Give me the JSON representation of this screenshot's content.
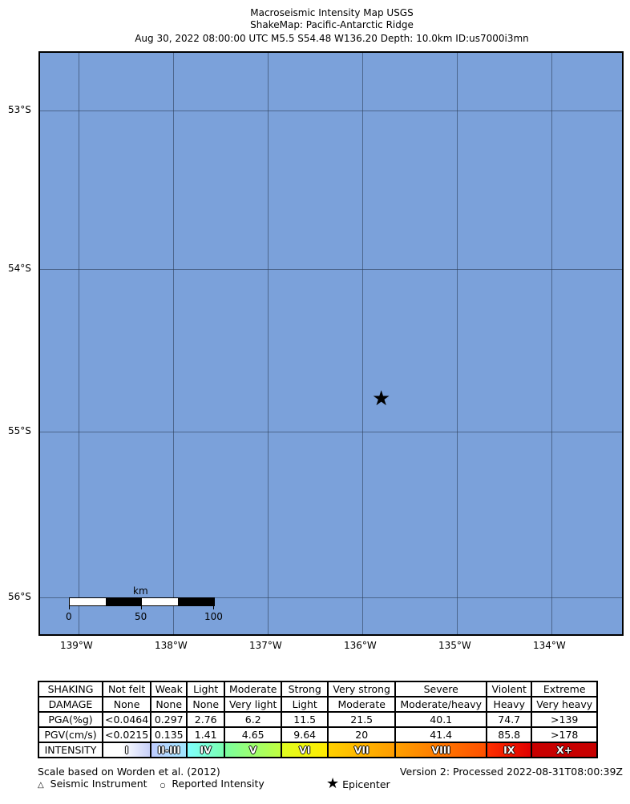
{
  "title": [
    "Macroseismic Intensity Map USGS",
    "ShakeMap: Pacific-Antarctic Ridge",
    "Aug 30, 2022 08:00:00 UTC M5.5 S54.48 W136.20 Depth: 10.0km ID:us7000i3mn"
  ],
  "map": {
    "lat_labels": [
      "53°S",
      "54°S",
      "55°S",
      "56°S"
    ],
    "lon_labels": [
      "139°W",
      "138°W",
      "137°W",
      "136°W",
      "135°W",
      "134°W"
    ],
    "water_color": "#7ba1da",
    "epicenter_icon": "star-icon",
    "scalebar": {
      "unit": "km",
      "ticks": [
        "0",
        "50",
        "100"
      ]
    }
  },
  "legend": {
    "rows": [
      {
        "label": "SHAKING",
        "cells": [
          "Not felt",
          "Weak",
          "Light",
          "Moderate",
          "Strong",
          "Very strong",
          "Severe",
          "Violent",
          "Extreme"
        ]
      },
      {
        "label": "DAMAGE",
        "cells": [
          "None",
          "None",
          "None",
          "Very light",
          "Light",
          "Moderate",
          "Moderate/heavy",
          "Heavy",
          "Very heavy"
        ]
      },
      {
        "label": "PGA(%g)",
        "cells": [
          "<0.0464",
          "0.297",
          "2.76",
          "6.2",
          "11.5",
          "21.5",
          "40.1",
          "74.7",
          ">139"
        ]
      },
      {
        "label": "PGV(cm/s)",
        "cells": [
          "<0.0215",
          "0.135",
          "1.41",
          "4.65",
          "9.64",
          "20",
          "41.4",
          "85.8",
          ">178"
        ]
      },
      {
        "label": "INTENSITY",
        "cells": [
          "I",
          "II-III",
          "IV",
          "V",
          "VI",
          "VII",
          "VIII",
          "IX",
          "X+"
        ]
      }
    ],
    "intensity_colors": [
      "linear-gradient(90deg,#fff 40%,#c8d0f8)",
      "linear-gradient(90deg,#bfccff,#a0e6ff)",
      "linear-gradient(90deg,#80ffff,#7affb0)",
      "linear-gradient(90deg,#7affa0,#c0ff40)",
      "linear-gradient(90deg,#e0ff20,#ffea00)",
      "linear-gradient(90deg,#ffd000,#ff9c00)",
      "linear-gradient(90deg,#ffa000,#ff5000)",
      "linear-gradient(90deg,#ff3000,#e00000)",
      "#c80000"
    ],
    "scale_note": "Scale based on Worden et al. (2012)",
    "version": "Version 2: Processed 2022-08-31T08:00:39Z",
    "symbols": [
      {
        "icon": "triangle-icon",
        "glyph": "△",
        "label": "Seismic Instrument"
      },
      {
        "icon": "circle-icon",
        "glyph": "○",
        "label": "Reported Intensity"
      },
      {
        "icon": "star-icon",
        "glyph": "★",
        "label": "Epicenter"
      }
    ]
  }
}
